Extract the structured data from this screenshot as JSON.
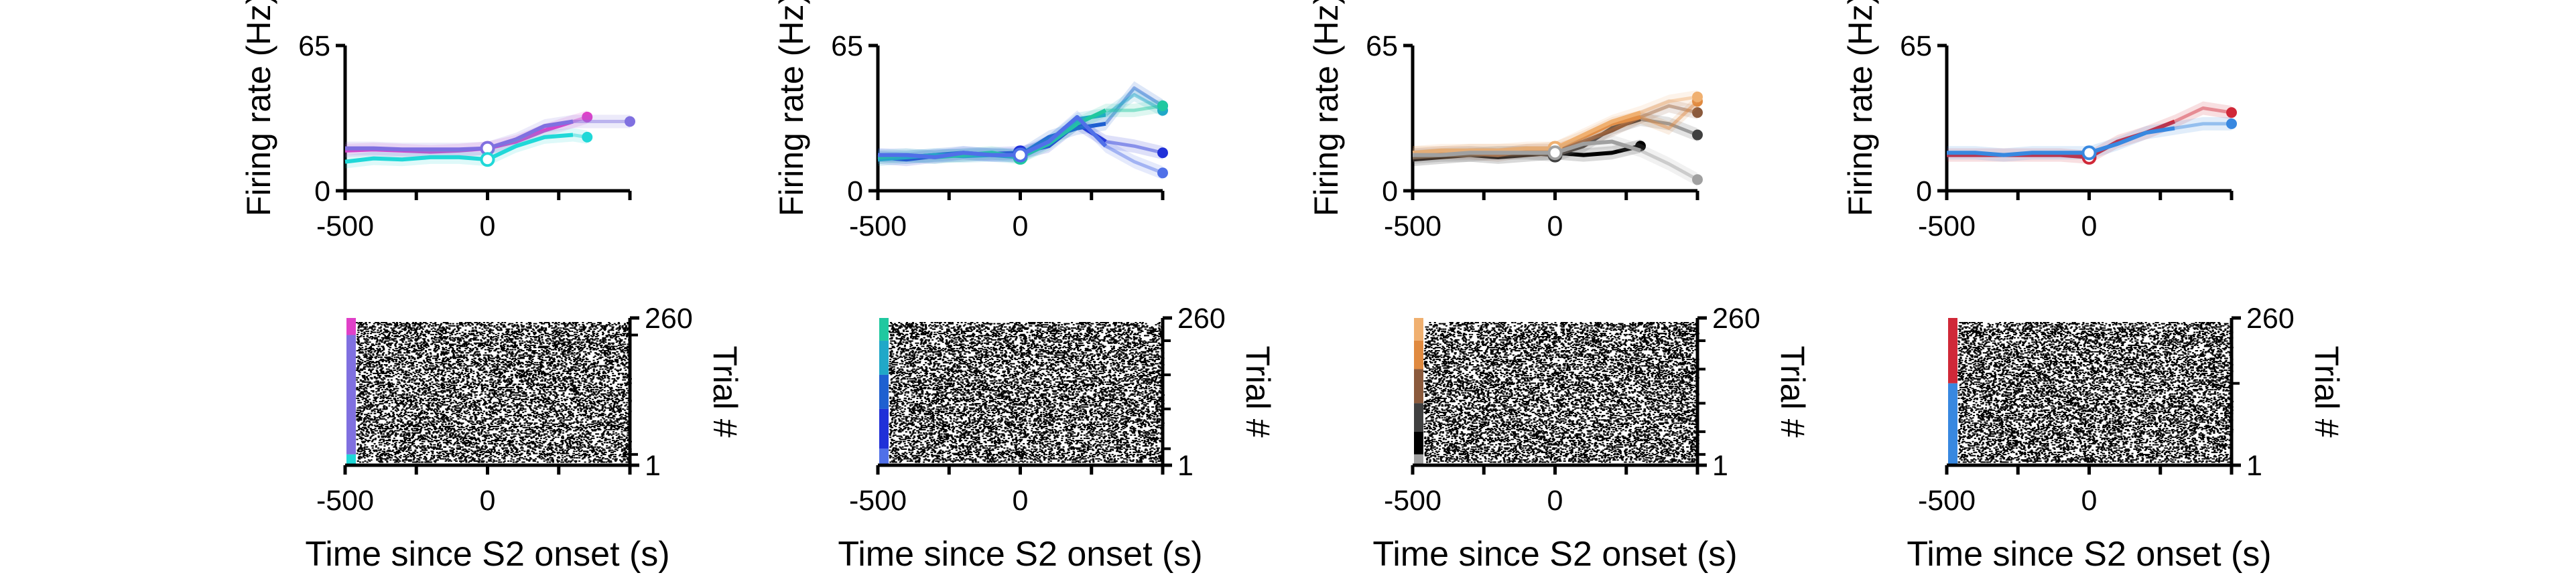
{
  "chart_data": [
    {
      "type": "line",
      "ylabel": "Firing rate (Hz)",
      "ylim": [
        0,
        65
      ],
      "yticks": [
        "0",
        "65"
      ],
      "xlim": [
        -500,
        500
      ],
      "xticks": [
        -500,
        -250,
        0,
        250,
        500
      ],
      "xticklabels": [
        "-500",
        "",
        "0",
        "",
        ""
      ],
      "series": [
        {
          "color": "#E040C8",
          "x": [
            -500,
            -400,
            -300,
            -200,
            -100,
            0,
            100,
            200,
            300,
            350
          ],
          "values": [
            18,
            18.5,
            18,
            17.5,
            18,
            19,
            22,
            27,
            31,
            33
          ]
        },
        {
          "color": "#8070E0",
          "x": [
            -500,
            -400,
            -300,
            -200,
            -100,
            0,
            100,
            200,
            300,
            400,
            500
          ],
          "values": [
            19,
            19,
            18.5,
            18.5,
            18.5,
            19,
            23,
            29,
            31,
            31,
            31
          ]
        },
        {
          "color": "#20D8D8",
          "x": [
            -500,
            -400,
            -300,
            -200,
            -100,
            0,
            100,
            200,
            300,
            350
          ],
          "values": [
            13,
            14.5,
            14,
            15,
            15,
            14,
            20,
            24,
            25,
            24
          ]
        }
      ]
    },
    {
      "type": "line",
      "ylabel": "Firing rate (Hz)",
      "ylim": [
        0,
        65
      ],
      "yticks": [
        "0",
        "65"
      ],
      "xlim": [
        -500,
        500
      ],
      "xticks": [
        -500,
        -250,
        0,
        250,
        500
      ],
      "xticklabels": [
        "-500",
        "",
        "0",
        "",
        ""
      ],
      "series": [
        {
          "color": "#2030D8",
          "x": [
            -500,
            -400,
            -300,
            -200,
            -100,
            0,
            100,
            200,
            300,
            400,
            500
          ],
          "values": [
            15,
            14,
            15.5,
            16,
            16.5,
            17,
            20,
            30,
            22,
            20,
            17
          ]
        },
        {
          "color": "#1E60D0",
          "x": [
            -500,
            -400,
            -300,
            -200,
            -100,
            0,
            100,
            200,
            300,
            400,
            500
          ],
          "values": [
            16,
            15,
            16,
            17,
            16,
            16,
            24,
            28,
            30,
            46,
            38
          ]
        },
        {
          "color": "#20A8C8",
          "x": [
            -500,
            -400,
            -300,
            -200,
            -100,
            0,
            100,
            200,
            300,
            400,
            500
          ],
          "values": [
            14,
            15,
            16,
            15.5,
            16,
            15,
            22,
            32,
            34,
            43,
            36
          ]
        },
        {
          "color": "#20C8A0",
          "x": [
            -500,
            -400,
            -300,
            -200,
            -100,
            0,
            100,
            200,
            300,
            400,
            500
          ],
          "values": [
            15,
            16,
            15,
            16,
            17,
            15,
            21,
            30,
            36,
            36,
            38
          ]
        },
        {
          "color": "#5070E8",
          "x": [
            -500,
            -400,
            -300,
            -200,
            -100,
            0,
            100,
            200,
            300,
            400,
            500
          ],
          "values": [
            16,
            16,
            15,
            17,
            16,
            16,
            22,
            33,
            20,
            13,
            8
          ]
        }
      ]
    },
    {
      "type": "line",
      "ylabel": "Firing rate (Hz)",
      "ylim": [
        0,
        65
      ],
      "yticks": [
        "0",
        "65"
      ],
      "xlim": [
        -500,
        500
      ],
      "xticks": [
        -500,
        -250,
        0,
        250,
        500
      ],
      "xticklabels": [
        "-500",
        "",
        "0",
        "",
        ""
      ],
      "series": [
        {
          "color": "#000000",
          "x": [
            -500,
            -400,
            -300,
            -200,
            -100,
            0,
            100,
            200,
            300
          ],
          "values": [
            14,
            15,
            16,
            15,
            16,
            17,
            16,
            17,
            20
          ]
        },
        {
          "color": "#404040",
          "x": [
            -500,
            -400,
            -300,
            -200,
            -100,
            0,
            100,
            200,
            300,
            400,
            500
          ],
          "values": [
            15,
            16,
            16,
            17,
            17,
            16,
            20,
            28,
            32,
            30,
            25
          ]
        },
        {
          "color": "#8B5A3C",
          "x": [
            -500,
            -400,
            -300,
            -200,
            -100,
            0,
            100,
            200,
            300,
            400,
            500
          ],
          "values": [
            16,
            17,
            17,
            16,
            18,
            18,
            22,
            27,
            33,
            38,
            35
          ]
        },
        {
          "color": "#E08A40",
          "x": [
            -500,
            -400,
            -300,
            -200,
            -100,
            0,
            100,
            200,
            300,
            400,
            500
          ],
          "values": [
            17,
            17,
            18,
            18,
            18,
            19,
            24,
            30,
            33,
            28,
            40
          ]
        },
        {
          "color": "#F0B070",
          "x": [
            -500,
            -400,
            -300,
            -200,
            -100,
            0,
            100,
            200,
            300,
            400,
            500
          ],
          "values": [
            17,
            18,
            18,
            18,
            19,
            19,
            25,
            31,
            35,
            40,
            42
          ]
        },
        {
          "color": "#A0A0A0",
          "x": [
            -500,
            -400,
            -300,
            -200,
            -100,
            0,
            100,
            200,
            300,
            400,
            500
          ],
          "values": [
            16,
            16,
            17,
            17,
            17,
            17,
            21,
            22,
            18,
            12,
            5
          ]
        }
      ]
    },
    {
      "type": "line",
      "ylabel": "Firing rate (Hz)",
      "ylim": [
        0,
        65
      ],
      "yticks": [
        "0",
        "65"
      ],
      "xlim": [
        -500,
        500
      ],
      "xticks": [
        -500,
        -250,
        0,
        250,
        500
      ],
      "xticklabels": [
        "-500",
        "",
        "0",
        "",
        ""
      ],
      "series": [
        {
          "color": "#D02838",
          "x": [
            -500,
            -400,
            -300,
            -200,
            -100,
            0,
            100,
            200,
            300,
            400,
            500
          ],
          "values": [
            16,
            16,
            16,
            16,
            16,
            15,
            22,
            26,
            31,
            37,
            35
          ]
        },
        {
          "color": "#3888E0",
          "x": [
            -500,
            -400,
            -300,
            -200,
            -100,
            0,
            100,
            200,
            300,
            400,
            500
          ],
          "values": [
            17,
            17,
            16,
            17,
            17,
            17,
            21,
            26,
            28,
            30,
            30
          ]
        }
      ]
    },
    {
      "type": "raster",
      "ylabel": "Trial #",
      "xlabel": "Time since S2 onset (s)",
      "ylim": [
        1,
        260
      ],
      "yticks": [
        "1",
        "260"
      ],
      "xlim": [
        -500,
        500
      ],
      "xticks": [
        -500,
        -250,
        0,
        250,
        500
      ],
      "xticklabels": [
        "-500",
        "",
        "0",
        "",
        ""
      ],
      "trial_groups": [
        {
          "color": "#E040C8",
          "trials": [
            230,
            260
          ]
        },
        {
          "color": "#8070E0",
          "trials": [
            20,
            230
          ]
        },
        {
          "color": "#20D8D8",
          "trials": [
            1,
            20
          ]
        }
      ]
    },
    {
      "type": "raster",
      "ylabel": "Trial #",
      "xlabel": "Time since S2 onset (s)",
      "ylim": [
        1,
        260
      ],
      "yticks": [
        "1",
        "260"
      ],
      "xlim": [
        -500,
        500
      ],
      "xticks": [
        -500,
        -250,
        0,
        250,
        500
      ],
      "xticklabels": [
        "-500",
        "",
        "0",
        "",
        ""
      ],
      "trial_groups": [
        {
          "color": "#20C8A0",
          "trials": [
            220,
            260
          ]
        },
        {
          "color": "#20A8C8",
          "trials": [
            160,
            220
          ]
        },
        {
          "color": "#1E60D0",
          "trials": [
            100,
            160
          ]
        },
        {
          "color": "#2030D8",
          "trials": [
            30,
            100
          ]
        },
        {
          "color": "#5070E8",
          "trials": [
            1,
            30
          ]
        }
      ]
    },
    {
      "type": "raster",
      "ylabel": "Trial #",
      "xlabel": "Time since S2 onset (s)",
      "ylim": [
        1,
        260
      ],
      "yticks": [
        "1",
        "260"
      ],
      "xlim": [
        -500,
        500
      ],
      "xticks": [
        -500,
        -250,
        0,
        250,
        500
      ],
      "xticklabels": [
        "-500",
        "",
        "0",
        "",
        ""
      ],
      "trial_groups": [
        {
          "color": "#F0B070",
          "trials": [
            220,
            260
          ]
        },
        {
          "color": "#E08A40",
          "trials": [
            170,
            220
          ]
        },
        {
          "color": "#8B5A3C",
          "trials": [
            110,
            170
          ]
        },
        {
          "color": "#404040",
          "trials": [
            60,
            110
          ]
        },
        {
          "color": "#000000",
          "trials": [
            20,
            60
          ]
        },
        {
          "color": "#A0A0A0",
          "trials": [
            1,
            20
          ]
        }
      ]
    },
    {
      "type": "raster",
      "ylabel": "Trial #",
      "xlabel": "Time since S2 onset (s)",
      "ylim": [
        1,
        260
      ],
      "yticks": [
        "1",
        "260"
      ],
      "xlim": [
        -500,
        500
      ],
      "xticks": [
        -500,
        -250,
        0,
        250,
        500
      ],
      "xticklabels": [
        "-500",
        "",
        "0",
        "",
        ""
      ],
      "trial_groups": [
        {
          "color": "#D02838",
          "trials": [
            145,
            260
          ]
        },
        {
          "color": "#3888E0",
          "trials": [
            1,
            145
          ]
        }
      ]
    }
  ]
}
